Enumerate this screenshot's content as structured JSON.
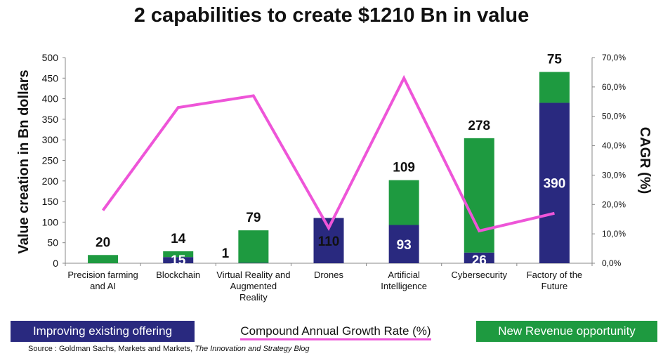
{
  "title": "2 capabilities to create $1210 Bn in value",
  "colors": {
    "improving": "#29297f",
    "new_revenue": "#1e9a40",
    "cagr": "#ee55d8"
  },
  "legend": {
    "improving": "Improving existing offering",
    "cagr": "Compound Annual Growth Rate (%)",
    "new_revenue": "New Revenue opportunity"
  },
  "source": {
    "prefix": "Source : Goldman Sachs, Markets and Markets, ",
    "italic": "The Innovation and Strategy Blog"
  },
  "chart_data": {
    "type": "bar",
    "stacked": true,
    "categories": [
      [
        "Precision farming",
        "and AI"
      ],
      [
        "Blockchain"
      ],
      [
        "Virtual Reality and",
        "Augmented",
        "Reality"
      ],
      [
        "Drones"
      ],
      [
        "Artificial",
        "Intelligence"
      ],
      [
        "Cybersecurity"
      ],
      [
        "Factory of the",
        "Future"
      ]
    ],
    "series": [
      {
        "name": "Improving existing offering",
        "values": [
          0,
          15,
          1,
          110,
          93,
          26,
          390
        ]
      },
      {
        "name": "New Revenue opportunity",
        "values": [
          20,
          14,
          79,
          0,
          109,
          278,
          75
        ]
      }
    ],
    "cagr": {
      "name": "Compound Annual Growth Rate (%)",
      "values": [
        18,
        53,
        57,
        12,
        63,
        11,
        17
      ]
    },
    "bar_labels": {
      "improving": [
        "",
        "15",
        "1",
        "110",
        "93",
        "26",
        "390"
      ],
      "new_revenue": [
        "20",
        "14",
        "79",
        "",
        "109",
        "278",
        "75"
      ]
    },
    "ylabel": "Value creation in Bn dollars",
    "ylim": [
      0,
      500
    ],
    "yticks": [
      "0",
      "50",
      "100",
      "150",
      "200",
      "250",
      "300",
      "350",
      "400",
      "450",
      "500"
    ],
    "y2label": "CAGR (%)",
    "y2lim": [
      0,
      70
    ],
    "y2ticks": [
      "0,0%",
      "10,0%",
      "20,0%",
      "30,0%",
      "40,0%",
      "50,0%",
      "60,0%",
      "70,0%"
    ],
    "grid": false
  }
}
